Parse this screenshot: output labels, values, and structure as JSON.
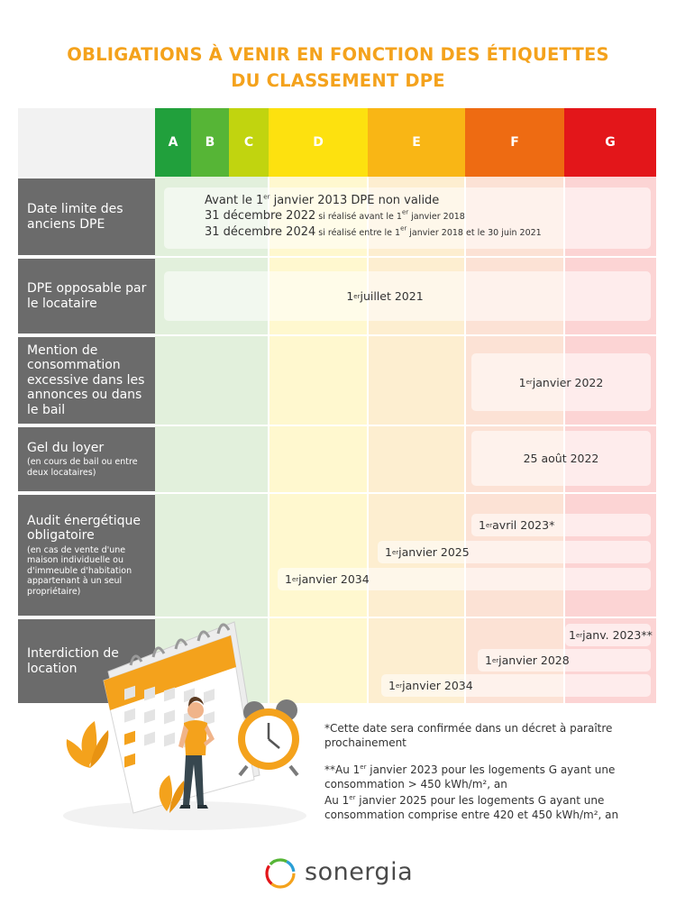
{
  "title": {
    "line1": "OBLIGATIONS À VENIR EN FONCTION DES ÉTIQUETTES",
    "line2": "DU CLASSEMENT DPE"
  },
  "classes": [
    {
      "label": "A",
      "color": "#21a03c",
      "light": "#e2f0dc"
    },
    {
      "label": "B",
      "color": "#56b536",
      "light": "#e2f0dc"
    },
    {
      "label": "C",
      "color": "#c1d40f",
      "light": "#e2f0dc"
    },
    {
      "label": "D",
      "color": "#fde10f",
      "light": "#fff8cf"
    },
    {
      "label": "E",
      "color": "#f9b615",
      "light": "#fdeed0"
    },
    {
      "label": "F",
      "color": "#ee6b12",
      "light": "#fce2d5"
    },
    {
      "label": "G",
      "color": "#e3161a",
      "light": "#fcd4d4"
    }
  ],
  "rows": {
    "r1": {
      "label": "Date limite des anciens DPE"
    },
    "r2": {
      "label": "DPE opposable par le locataire"
    },
    "r3": {
      "label": "Mention de consommation excessive dans les annonces ou dans le bail"
    },
    "r4": {
      "label": "Gel du loyer",
      "sub": "(en cours de bail ou entre deux locataires)"
    },
    "r5": {
      "label": "Audit énergétique obligatoire",
      "sub": "(en cas de vente d'une maison individuelle ou d'immeuble d'habitation appartenant à un seul propriétaire)"
    },
    "r6": {
      "label": "Interdiction de location"
    }
  },
  "cells": {
    "r1": {
      "l1_a": "Avant le 1",
      "l1_sup": "er",
      "l1_b": " janvier 2013 DPE non valide",
      "l2_a": "31 décembre 2022",
      "l2_b": " si réalisé avant le 1",
      "l2_sup": "er",
      "l2_c": " janvier 2018",
      "l3_a": "31 décembre 2024",
      "l3_b": " si réalisé entre le 1",
      "l3_sup": "er",
      "l3_c": " janvier 2018 et le 30 juin 2021"
    },
    "r2": {
      "a": "1",
      "sup": "er",
      "b": " juillet 2021"
    },
    "r3": {
      "a": "1",
      "sup": "er",
      "b": " janvier 2022"
    },
    "r4": {
      "text": "25 août 2022"
    },
    "r5": {
      "p1_a": "1",
      "p1_sup": "er",
      "p1_b": " avril 2023*",
      "p2_a": "1",
      "p2_sup": "er",
      "p2_b": " janvier 2025",
      "p3_a": "1",
      "p3_sup": "er",
      "p3_b": " janvier 2034"
    },
    "r6": {
      "p1_a": "1",
      "p1_sup": "er",
      "p1_b": " janv. 2023**",
      "p2_a": "1",
      "p2_sup": "er",
      "p2_b": " janvier 2028",
      "p3_a": "1",
      "p3_sup": "er",
      "p3_b": " janvier 2034"
    }
  },
  "notes": {
    "n1": "*Cette date sera confirmée dans un décret à paraître prochainement",
    "n2_a": "**Au 1",
    "n2_sup": "er",
    "n2_b": " janvier 2023 pour les logements G ayant une consommation > 450 kWh/m², an",
    "n3_a": "Au 1",
    "n3_sup": "er",
    "n3_b": " janvier 2025 pour les logements G ayant une consommation comprise entre 420 et 450 kWh/m², an"
  },
  "brand": {
    "name": "sonergia"
  }
}
